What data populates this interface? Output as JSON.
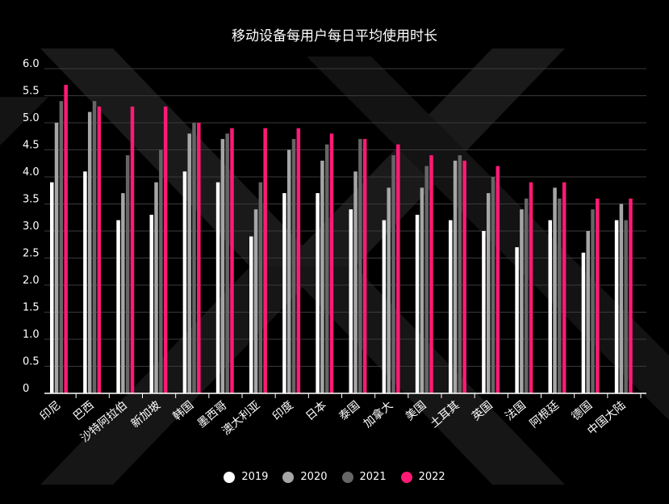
{
  "chart_data": {
    "type": "bar",
    "title": "移动设备每用户每日平均使用时长",
    "categories": [
      "印尼",
      "巴西",
      "沙特阿拉伯",
      "新加坡",
      "韩国",
      "墨西哥",
      "澳大利亚",
      "印度",
      "日本",
      "泰国",
      "加拿大",
      "美国",
      "土耳其",
      "英国",
      "法国",
      "阿根廷",
      "德国",
      "中国大陆"
    ],
    "series": [
      {
        "name": "2019",
        "color": "#ffffff",
        "values": [
          3.9,
          4.1,
          3.2,
          3.3,
          4.1,
          3.9,
          2.9,
          3.7,
          3.7,
          3.4,
          3.2,
          3.3,
          3.2,
          3.0,
          2.7,
          3.2,
          2.6,
          3.2
        ]
      },
      {
        "name": "2020",
        "color": "#a6a6a6",
        "values": [
          5.0,
          5.2,
          3.7,
          3.9,
          4.8,
          4.7,
          3.4,
          4.5,
          4.3,
          4.1,
          3.8,
          3.8,
          4.3,
          3.7,
          3.4,
          3.8,
          3.0,
          3.5
        ]
      },
      {
        "name": "2021",
        "color": "#666666",
        "values": [
          5.4,
          5.4,
          4.4,
          4.5,
          5.0,
          4.8,
          3.9,
          4.7,
          4.6,
          4.7,
          4.4,
          4.2,
          4.4,
          4.0,
          3.6,
          3.6,
          3.4,
          3.2
        ]
      },
      {
        "name": "2022",
        "color": "#ff1a75",
        "values": [
          5.7,
          5.3,
          5.3,
          5.3,
          5.0,
          4.9,
          4.9,
          4.9,
          4.8,
          4.7,
          4.6,
          4.4,
          4.3,
          4.2,
          3.9,
          3.9,
          3.6,
          3.6
        ]
      }
    ],
    "yticks": [
      "0",
      "0.5",
      "1.0",
      "1.5",
      "2.0",
      "2.5",
      "3.0",
      "3.5",
      "4.0",
      "4.5",
      "5.0",
      "5.5",
      "6.0"
    ],
    "ylim": [
      0,
      6.0
    ],
    "grid": true,
    "legend_position": "bottom-center"
  }
}
